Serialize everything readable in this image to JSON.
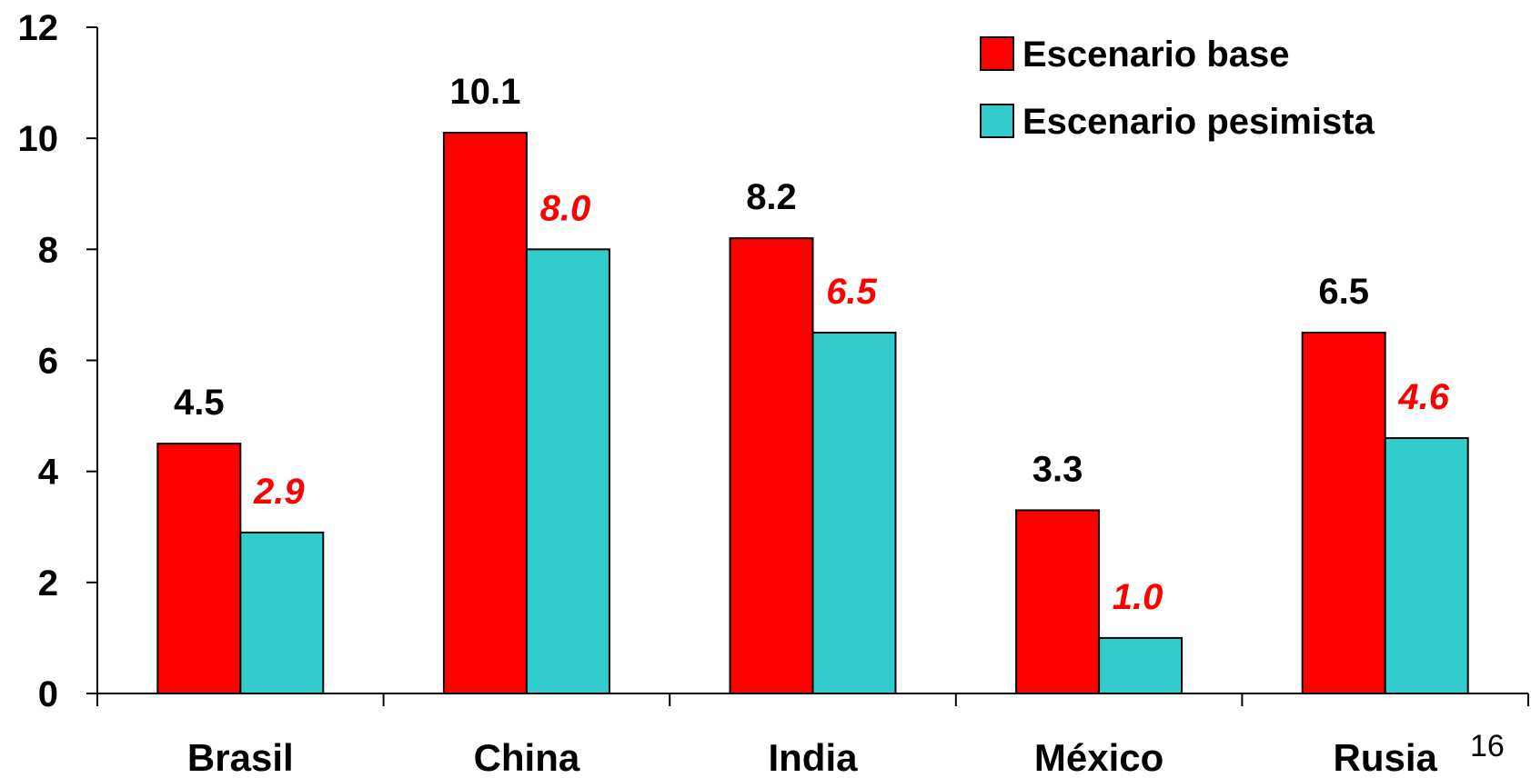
{
  "chart_data": {
    "type": "bar",
    "categories": [
      "Brasil",
      "China",
      "India",
      "México",
      "Rusia"
    ],
    "series": [
      {
        "name": "Escenario base",
        "values": [
          4.5,
          10.1,
          8.2,
          3.3,
          6.5
        ],
        "labels": [
          "4.5",
          "10.1",
          "8.2",
          "3.3",
          "6.5"
        ],
        "color": "#ff0000",
        "label_color": "#000000"
      },
      {
        "name": "Escenario pesimista",
        "values": [
          2.9,
          8.0,
          6.5,
          1.0,
          4.6
        ],
        "labels": [
          "2.9",
          "8.0",
          "6.5",
          "1.0",
          "4.6"
        ],
        "color": "#33cccc",
        "label_color": "#ff0000"
      }
    ],
    "yticks": [
      "0",
      "2",
      "4",
      "6",
      "8",
      "10",
      "12"
    ],
    "ylim": [
      0,
      12
    ],
    "grid": false,
    "legend_position": "top-right"
  },
  "page_number": "16"
}
